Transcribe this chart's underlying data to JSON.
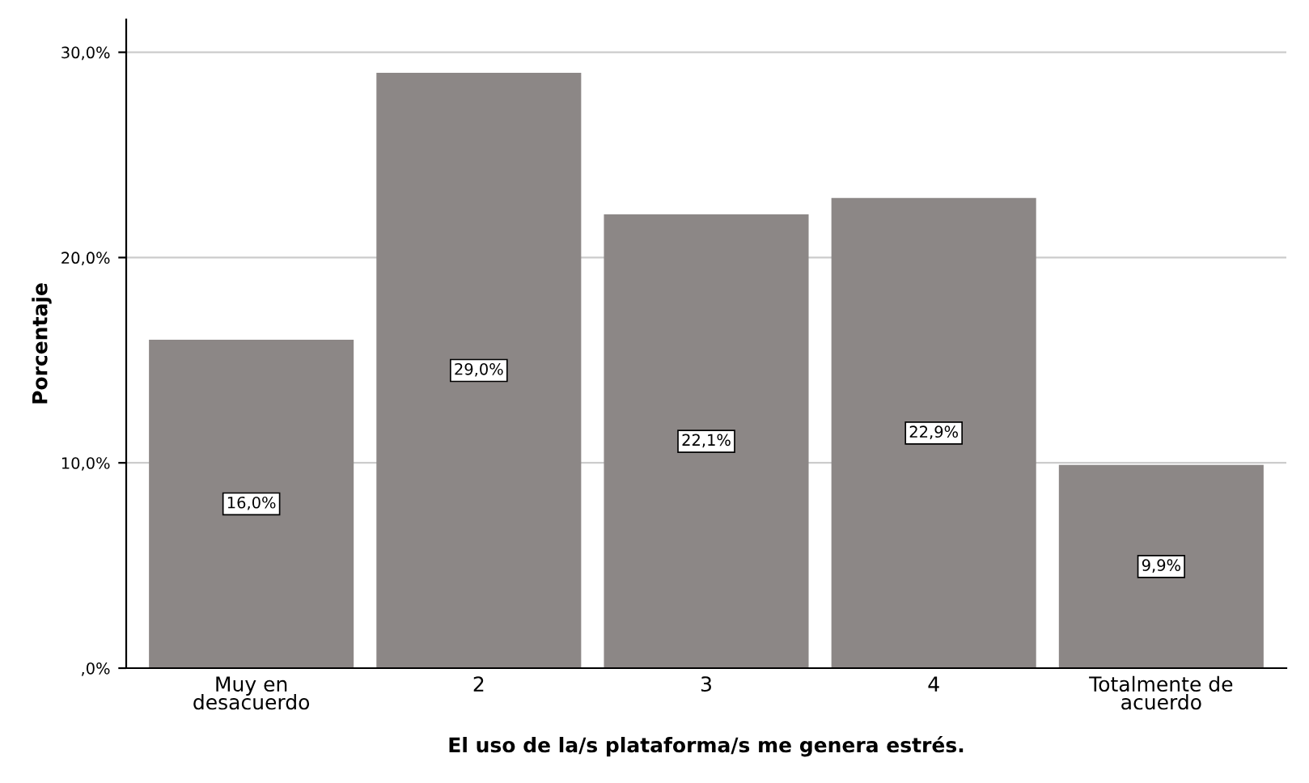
{
  "chart_data": {
    "type": "bar",
    "xlabel": "El uso de la/s plataforma/s me genera estrés.",
    "ylabel": "Porcentaje",
    "categories": [
      "Muy en\ndesacuerdo",
      "2",
      "3",
      "4",
      "Totalmente de\nacuerdo"
    ],
    "values": [
      16.0,
      29.0,
      22.1,
      22.9,
      9.9
    ],
    "value_labels": [
      "16,0%",
      "29,0%",
      "22,1%",
      "22,9%",
      "9,9%"
    ],
    "color": "#8c8786",
    "ylim": [
      0,
      31.6
    ],
    "yticks": [
      {
        "value": 0,
        "label": ",0%"
      },
      {
        "value": 10,
        "label": "10,0%"
      },
      {
        "value": 20,
        "label": "20,0%"
      },
      {
        "value": 30,
        "label": "30,0%"
      }
    ],
    "grid": "y"
  }
}
